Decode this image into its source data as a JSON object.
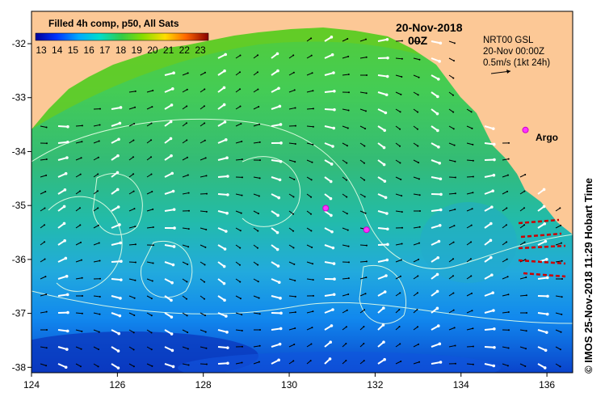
{
  "map": {
    "colorbar_title": "Filled 4h comp, p50, All Sats",
    "colorbar_ticks": [
      "13",
      "14",
      "15",
      "16",
      "17",
      "18",
      "19",
      "20",
      "21",
      "22",
      "23"
    ],
    "date": "20-Nov-2018",
    "time": "00Z",
    "legend_line1": "NRT00 GSL",
    "legend_line2": "20-Nov 00:00Z",
    "legend_line3": "0.5m/s (1kt 24h)",
    "argo_label": "Argo",
    "credit": "© IMOS 25-Nov-2018 11:29 Hobart Time",
    "lon_ticks": [
      "124",
      "126",
      "128",
      "130",
      "132",
      "134",
      "136"
    ],
    "lat_ticks": [
      "-32",
      "-33",
      "-34",
      "-35",
      "-36",
      "-37",
      "-38"
    ],
    "lon_range": [
      124,
      136.6
    ],
    "lat_range": [
      -38.1,
      -31.4
    ],
    "argo_floats": [
      {
        "lon": 135.5,
        "lat": -33.6
      },
      {
        "lon": 130.85,
        "lat": -35.05
      },
      {
        "lon": 131.8,
        "lat": -35.45
      }
    ],
    "colors": {
      "land": "#fcc896",
      "argo": "#ff33ff",
      "quiver_gsl": "#cc0000",
      "contour": "#e6ffe6"
    }
  }
}
